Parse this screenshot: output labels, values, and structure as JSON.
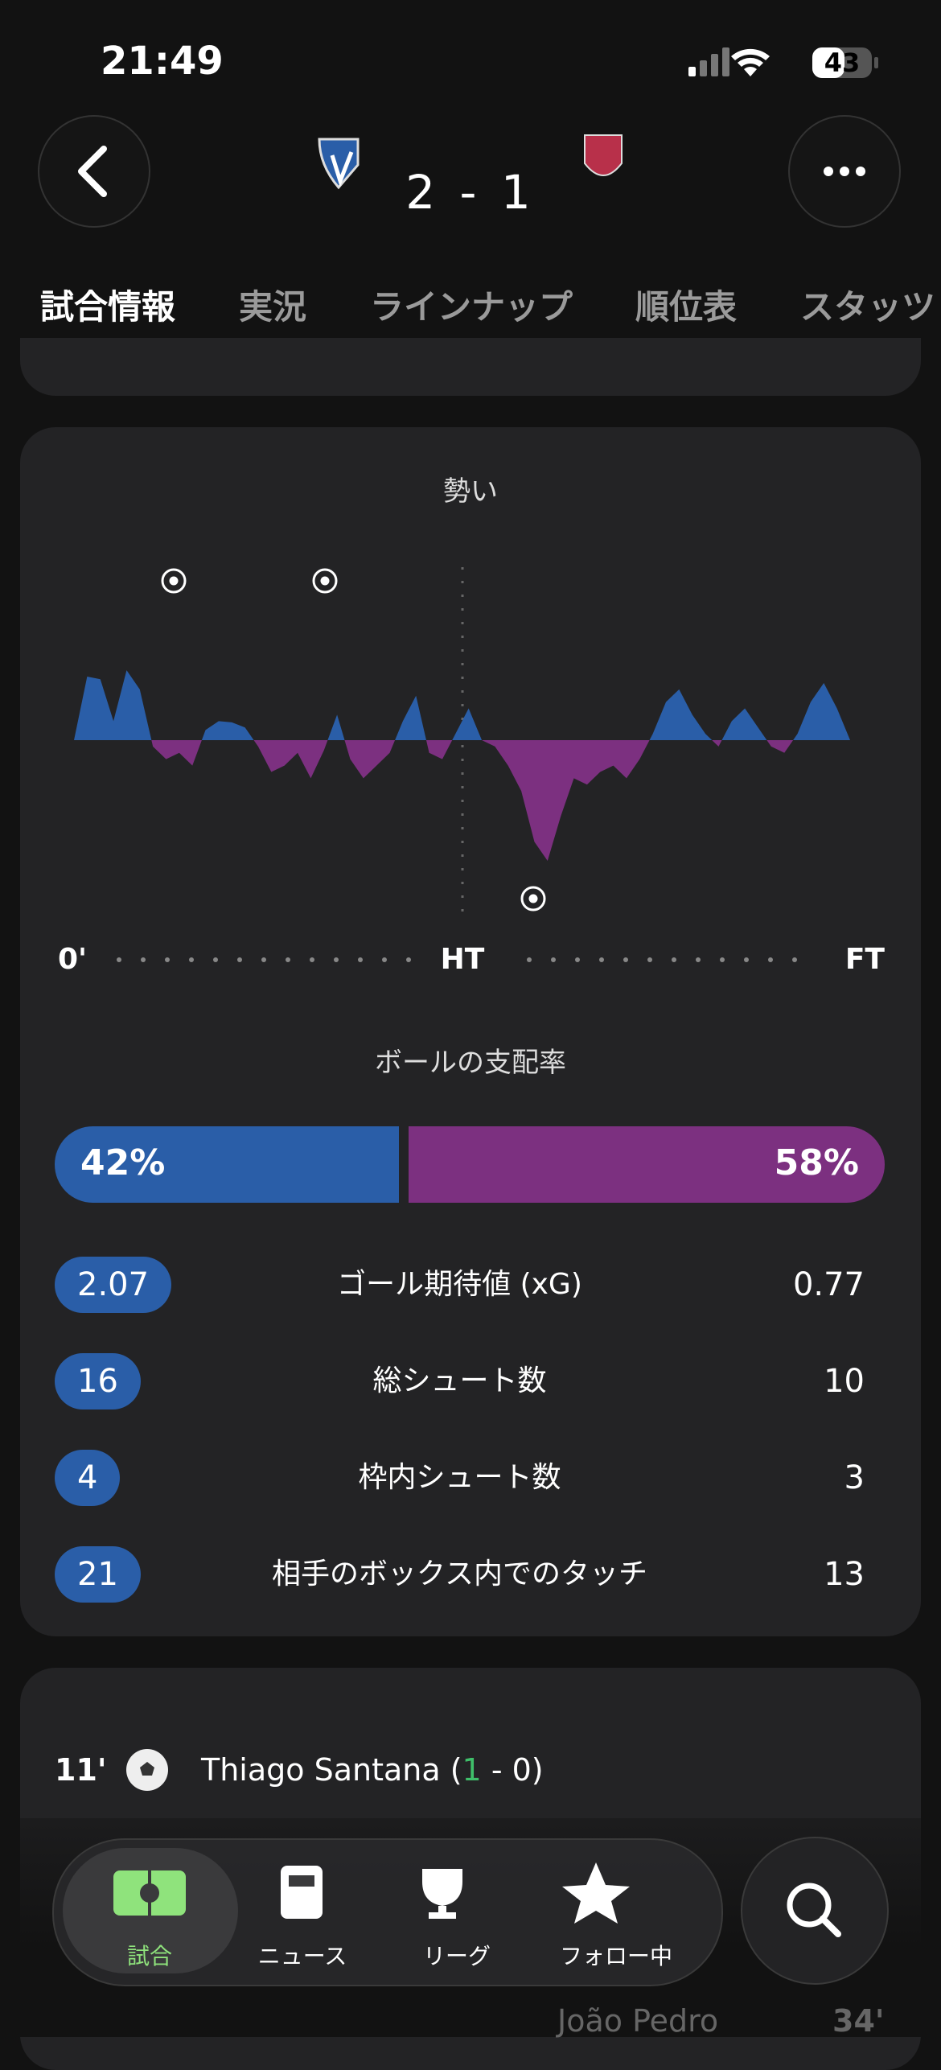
{
  "status_bar": {
    "time": "21:49",
    "battery": "43"
  },
  "header": {
    "score": "2 - 1"
  },
  "tabs": [
    "試合情報",
    "実況",
    "ラインナップ",
    "順位表",
    "スタッツ"
  ],
  "momentum": {
    "title": "勢い",
    "axis": [
      "0'",
      "HT",
      "FT"
    ],
    "values": [
      0,
      50,
      48,
      15,
      55,
      40,
      -5,
      -15,
      -10,
      -20,
      8,
      15,
      14,
      10,
      -5,
      -25,
      -20,
      -10,
      -30,
      -8,
      20,
      -15,
      -30,
      -20,
      -10,
      15,
      35,
      -10,
      -15,
      5,
      25,
      0,
      -5,
      -20,
      -40,
      -80,
      -95,
      -60,
      -30,
      -35,
      -25,
      -20,
      -30,
      -15,
      5,
      30,
      40,
      20,
      5,
      -5,
      15,
      25,
      10,
      -5,
      -10,
      5,
      30,
      45,
      25,
      0
    ]
  },
  "possession": {
    "title": "ボールの支配率",
    "home": "42%",
    "away": "58%"
  },
  "stats": [
    {
      "home": "2.07",
      "label": "ゴール期待値 (xG)",
      "away": "0.77"
    },
    {
      "home": "16",
      "label": "総シュート数",
      "away": "10"
    },
    {
      "home": "4",
      "label": "枠内シュート数",
      "away": "3"
    },
    {
      "home": "21",
      "label": "相手のボックス内でのタッチ",
      "away": "13"
    }
  ],
  "event": {
    "minute": "11'",
    "player": "Thiago Santana",
    "score_open": " (",
    "score_home": "1",
    "score_rest": " - 0)"
  },
  "behind": {
    "player": "João Pedro",
    "minute": "34'"
  },
  "nav": [
    "試合",
    "ニュース",
    "リーグ",
    "フォロー中"
  ]
}
